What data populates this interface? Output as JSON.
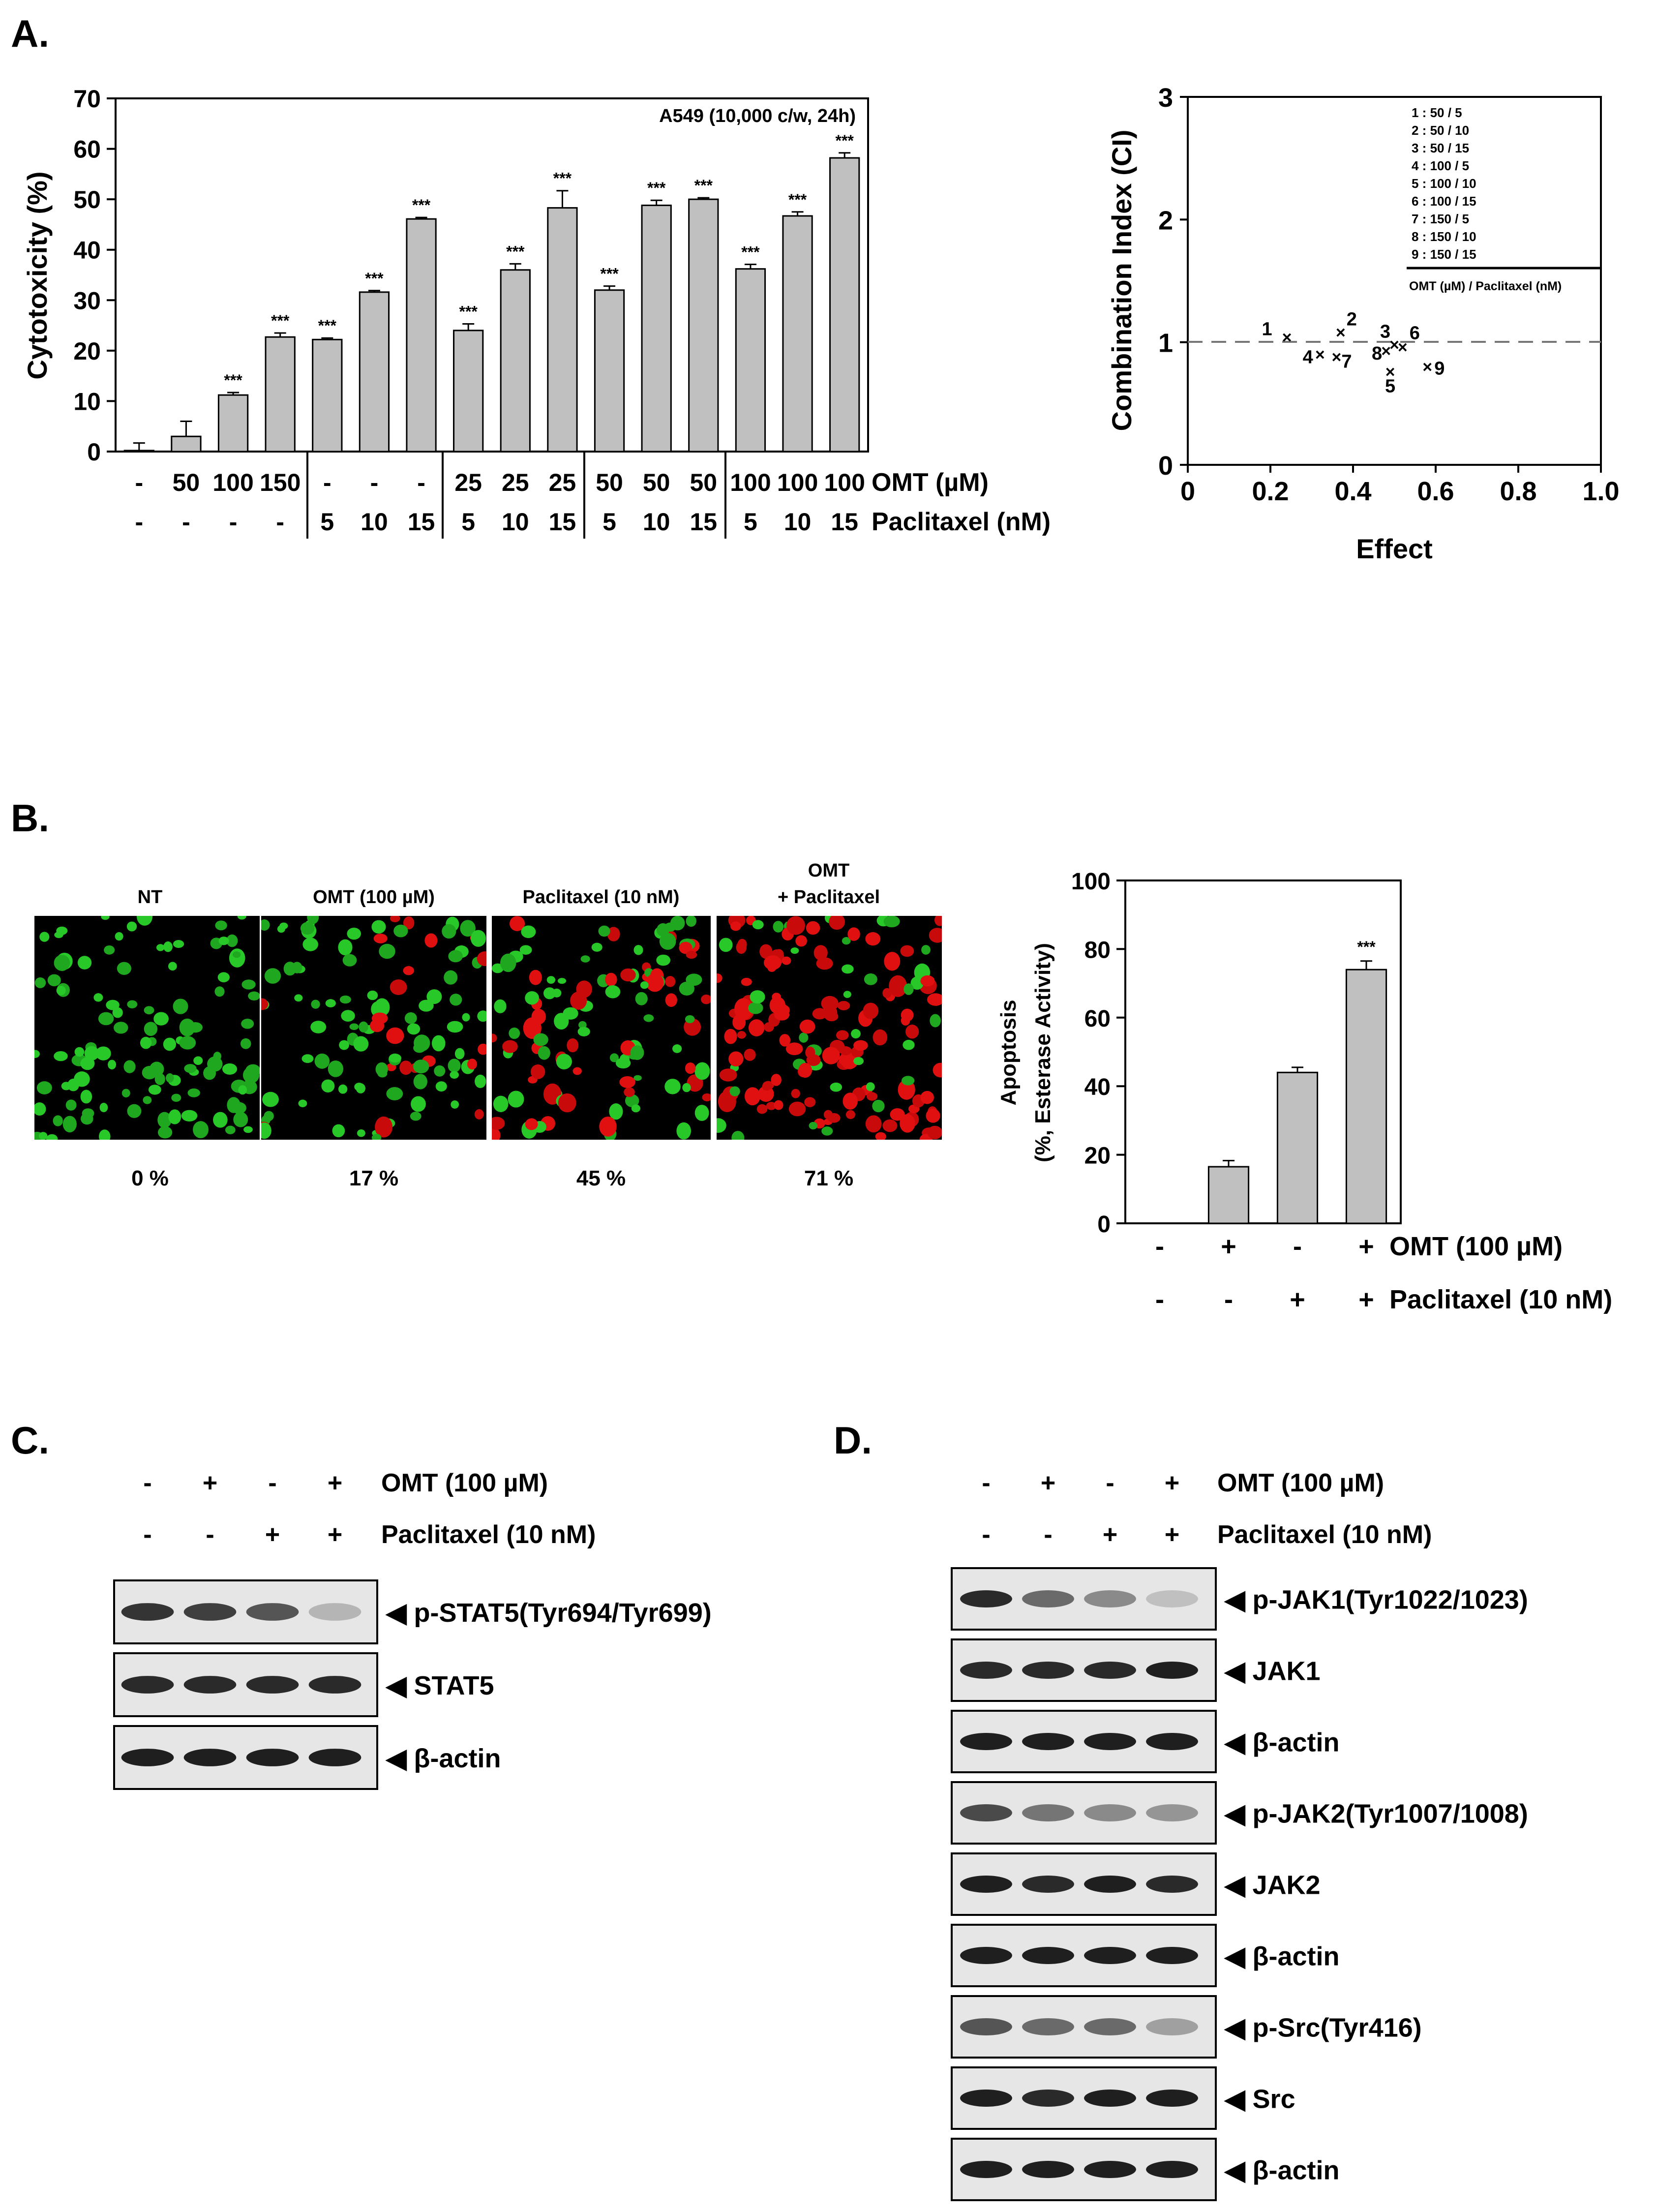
{
  "panels": {
    "a": "A.",
    "b": "B.",
    "c": "C.",
    "d": "D."
  },
  "chart_data": [
    {
      "type": "bar",
      "ylabel": "Cytotoxicity (%)",
      "annotation": "A549 (10,000 c/w, 24h)",
      "ylim": [
        0,
        70
      ],
      "yticks": [
        "0",
        "10",
        "20",
        "30",
        "40",
        "50",
        "60",
        "70"
      ],
      "row_labels": [
        "OMT (µM)",
        "Paclitaxel (nM)"
      ],
      "omt": [
        "-",
        "50",
        "100",
        "150",
        "-",
        "-",
        "-",
        "25",
        "25",
        "25",
        "50",
        "50",
        "50",
        "100",
        "100",
        "100"
      ],
      "paclitaxel": [
        "-",
        "-",
        "-",
        "-",
        "5",
        "10",
        "15",
        "5",
        "10",
        "15",
        "5",
        "10",
        "15",
        "5",
        "10",
        "15"
      ],
      "values": [
        0.2,
        3.0,
        11.2,
        22.7,
        22.2,
        31.6,
        46.1,
        24.0,
        36.0,
        48.3,
        32.0,
        48.8,
        50.0,
        36.2,
        46.7,
        58.2
      ],
      "errors": [
        1.5,
        3.0,
        0.5,
        0.8,
        0.3,
        0.3,
        0.3,
        1.3,
        1.2,
        3.4,
        0.8,
        1.0,
        0.3,
        0.9,
        0.8,
        1.0
      ],
      "significance": [
        "",
        "",
        "***",
        "***",
        "***",
        "***",
        "***",
        "***",
        "***",
        "***",
        "***",
        "***",
        "***",
        "***",
        "***",
        "***"
      ]
    },
    {
      "type": "scatter",
      "xlabel": "Effect",
      "ylabel": "Combination Index (CI)",
      "xlim": [
        0,
        1.0
      ],
      "ylim": [
        0,
        3
      ],
      "xticks": [
        "0",
        "0.2",
        "0.4",
        "0.6",
        "0.8",
        "1.0"
      ],
      "yticks": [
        "0",
        "1",
        "2",
        "3"
      ],
      "reference_line_y": 1,
      "points": [
        {
          "label": "1",
          "x": 0.24,
          "y": 1.04
        },
        {
          "label": "2",
          "x": 0.37,
          "y": 1.08
        },
        {
          "label": "3",
          "x": 0.5,
          "y": 0.98
        },
        {
          "label": "4",
          "x": 0.32,
          "y": 0.9
        },
        {
          "label": "5",
          "x": 0.49,
          "y": 0.76
        },
        {
          "label": "6",
          "x": 0.52,
          "y": 0.96
        },
        {
          "label": "7",
          "x": 0.36,
          "y": 0.88
        },
        {
          "label": "8",
          "x": 0.48,
          "y": 0.93
        },
        {
          "label": "9",
          "x": 0.58,
          "y": 0.8
        }
      ],
      "legend": [
        "1 : 50 / 5",
        "2 : 50 / 10",
        "3 : 50 / 15",
        "4 : 100 / 5",
        "5 : 100 / 10",
        "6 : 100 / 15",
        "7 : 150 / 5",
        "8 : 150 / 10",
        "9 : 150 / 15"
      ],
      "legend_caption": "OMT (µM) / Paclitaxel (nM)"
    },
    {
      "type": "bar",
      "ylabel_line1": "Apoptosis",
      "ylabel_line2": "(%, Esterase Activity)",
      "ylim": [
        0,
        100
      ],
      "yticks": [
        "0",
        "20",
        "40",
        "60",
        "80",
        "100"
      ],
      "row_labels": [
        "OMT (100 µM)",
        "Paclitaxel (10 nM)"
      ],
      "omt": [
        "-",
        "+",
        "-",
        "+"
      ],
      "paclitaxel": [
        "-",
        "-",
        "+",
        "+"
      ],
      "values": [
        0,
        16.5,
        44.0,
        74.0
      ],
      "errors": [
        0,
        1.8,
        1.5,
        2.5
      ],
      "significance": [
        "",
        "",
        "",
        "***"
      ]
    }
  ],
  "micrographs": {
    "titles": [
      "NT",
      "OMT (100 µM)",
      "Paclitaxel (10 nM)",
      "OMT",
      "+ Paclitaxel"
    ],
    "percents": [
      "0 %",
      "17 %",
      "45 %",
      "71 %"
    ],
    "red_fraction": [
      0.0,
      0.17,
      0.45,
      0.71
    ]
  },
  "blot_c": {
    "omt_row": [
      "-",
      "+",
      "-",
      "+"
    ],
    "pac_row": [
      "-",
      "-",
      "+",
      "+"
    ],
    "omt_label": "OMT (100 µM)",
    "pac_label": "Paclitaxel (10 nM)",
    "bands": [
      {
        "label": "◀ p-STAT5(Tyr694/Tyr699)",
        "intensity": [
          0.85,
          0.8,
          0.7,
          0.25
        ]
      },
      {
        "label": "◀ STAT5",
        "intensity": [
          0.9,
          0.9,
          0.9,
          0.9
        ]
      },
      {
        "label": "◀ β-actin",
        "intensity": [
          0.95,
          0.95,
          0.95,
          0.95
        ]
      }
    ]
  },
  "blot_d": {
    "omt_row": [
      "-",
      "+",
      "-",
      "+"
    ],
    "pac_row": [
      "-",
      "-",
      "+",
      "+"
    ],
    "omt_label": "OMT (100 µM)",
    "pac_label": "Paclitaxel (10 nM)",
    "bands": [
      {
        "label": "◀ p-JAK1(Tyr1022/1023)",
        "intensity": [
          0.9,
          0.6,
          0.45,
          0.2
        ]
      },
      {
        "label": "◀ JAK1",
        "intensity": [
          0.9,
          0.9,
          0.9,
          0.95
        ]
      },
      {
        "label": "◀ β-actin",
        "intensity": [
          0.95,
          0.95,
          0.95,
          0.95
        ]
      },
      {
        "label": "◀ p-JAK2(Tyr1007/1008)",
        "intensity": [
          0.75,
          0.55,
          0.45,
          0.4
        ]
      },
      {
        "label": "◀ JAK2",
        "intensity": [
          0.95,
          0.9,
          0.95,
          0.9
        ]
      },
      {
        "label": "◀ β-actin",
        "intensity": [
          0.95,
          0.95,
          0.95,
          0.95
        ]
      },
      {
        "label": "◀ p-Src(Tyr416)",
        "intensity": [
          0.7,
          0.6,
          0.6,
          0.35
        ]
      },
      {
        "label": "◀ Src",
        "intensity": [
          0.95,
          0.9,
          0.95,
          0.95
        ]
      },
      {
        "label": "◀ β-actin",
        "intensity": [
          0.95,
          0.95,
          0.95,
          0.95
        ]
      }
    ]
  }
}
